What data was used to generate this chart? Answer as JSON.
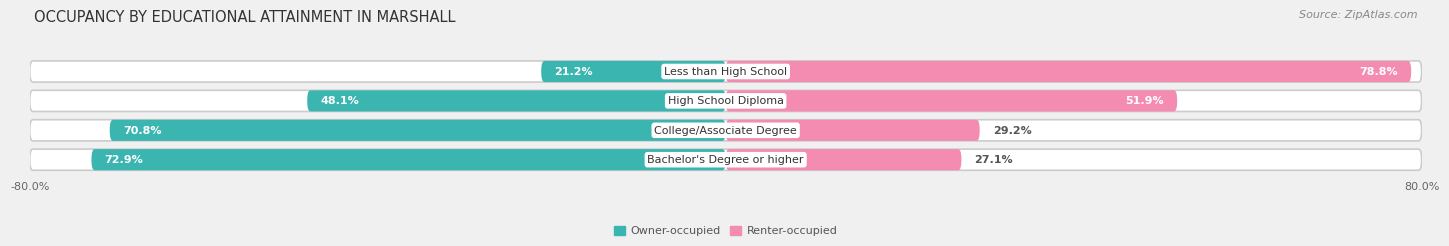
{
  "title": "OCCUPANCY BY EDUCATIONAL ATTAINMENT IN MARSHALL",
  "source": "Source: ZipAtlas.com",
  "categories": [
    "Less than High School",
    "High School Diploma",
    "College/Associate Degree",
    "Bachelor's Degree or higher"
  ],
  "owner_values": [
    21.2,
    48.1,
    70.8,
    72.9
  ],
  "renter_values": [
    78.8,
    51.9,
    29.2,
    27.1
  ],
  "owner_color": "#3ab5b0",
  "renter_color": "#f48cb1",
  "xlim_left": -80.0,
  "xlim_right": 80.0,
  "x_ticks": [
    -80.0,
    80.0
  ],
  "x_tick_labels": [
    "-80.0%",
    "80.0%"
  ],
  "bar_height": 0.72,
  "background_color": "#f0f0f0",
  "bar_background_color": "#e0e0e0",
  "row_background_color": "#e8e8e8",
  "title_fontsize": 10.5,
  "source_fontsize": 8,
  "value_fontsize": 8,
  "cat_fontsize": 8,
  "tick_fontsize": 8,
  "legend_fontsize": 8
}
